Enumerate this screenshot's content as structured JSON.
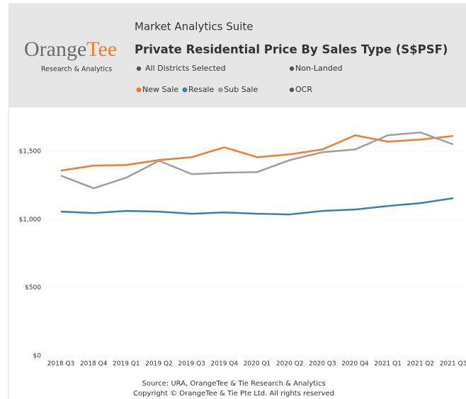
{
  "header": {
    "suite": "Market Analytics Suite",
    "logo_left": "Orange",
    "logo_right": "Tee",
    "logo_sub": "Research & Analytics",
    "filters": [
      "All Districts Selected",
      "Non-Landed",
      "OCR"
    ]
  },
  "chart_data": {
    "type": "line",
    "title": "Private Residential Price By Sales Type (S$PSF)",
    "categories": [
      "2018 Q3",
      "2018 Q4",
      "2019 Q1",
      "2019 Q2",
      "2019 Q3",
      "2019 Q4",
      "2020 Q1",
      "2020 Q2",
      "2020 Q3",
      "2020 Q4",
      "2021 Q1",
      "2021 Q2",
      "2021 Q3"
    ],
    "series": [
      {
        "name": "New Sale",
        "color": "#f47b2a",
        "values": [
          1360,
          1396,
          1401,
          1437,
          1458,
          1531,
          1458,
          1479,
          1515,
          1619,
          1572,
          1588,
          1614
        ]
      },
      {
        "name": "Resale",
        "color": "#3f7fae",
        "values": [
          1059,
          1048,
          1064,
          1059,
          1043,
          1053,
          1043,
          1038,
          1064,
          1074,
          1100,
          1121,
          1157
        ]
      },
      {
        "name": "Sub Sale",
        "color": "#9e9e9e",
        "values": [
          1323,
          1230,
          1308,
          1432,
          1334,
          1344,
          1349,
          1437,
          1495,
          1515,
          1619,
          1640,
          1552
        ]
      }
    ],
    "ylim": [
      0,
      1750
    ],
    "yticks": [
      {
        "value": 0,
        "label": "$0"
      },
      {
        "value": 500,
        "label": "$500"
      },
      {
        "value": 1000,
        "label": "$1,000"
      },
      {
        "value": 1500,
        "label": "$1,500"
      }
    ],
    "grid": true
  },
  "footer": {
    "source": "Source: URA, OrangeTee & Tie Research & Analytics",
    "copyright": "Copyright © OrangeTee & Tie Pte Ltd. All rights reserved"
  }
}
